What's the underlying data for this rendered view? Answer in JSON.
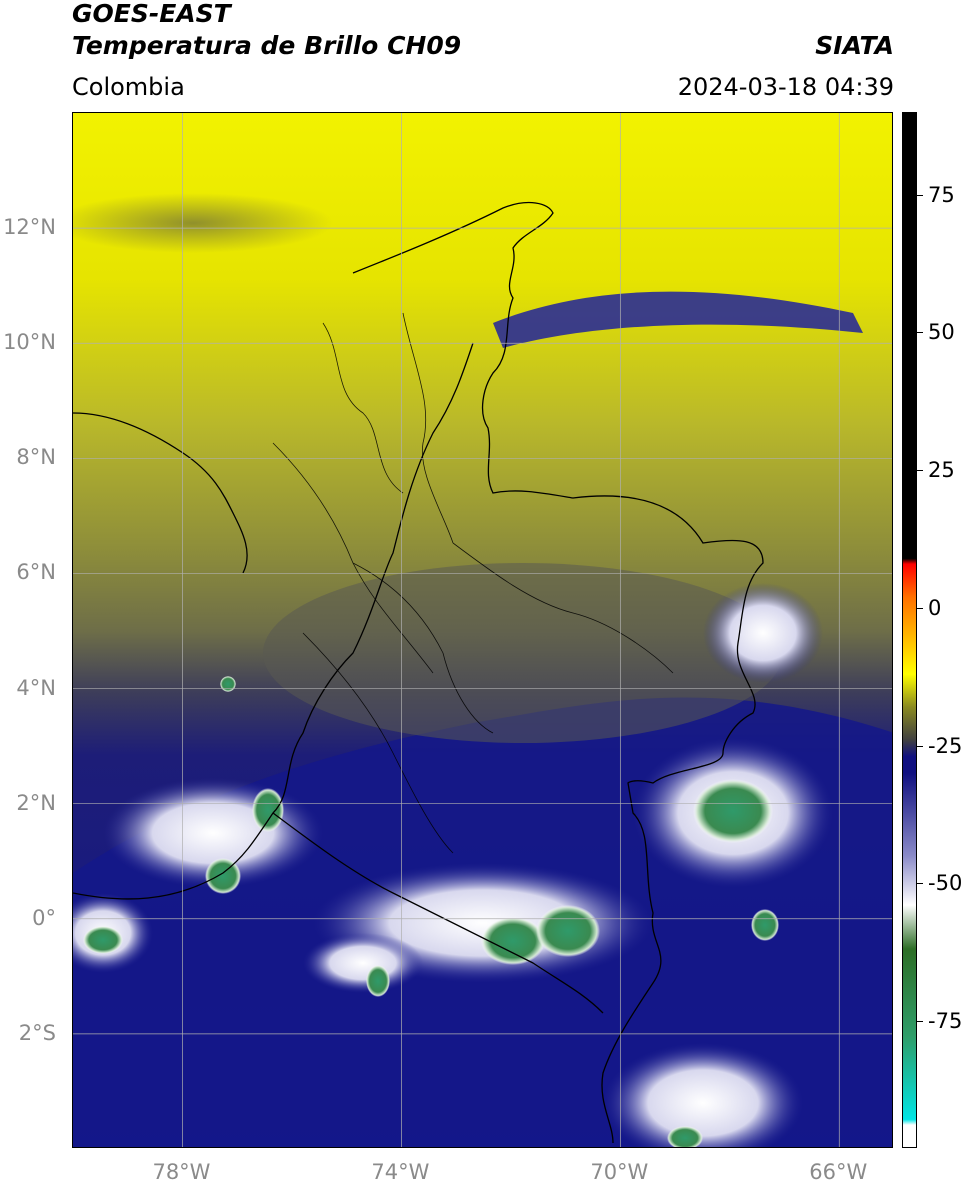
{
  "header": {
    "satellite": "GOES-EAST",
    "product": "Temperatura de Brillo CH09",
    "agency": "SIATA",
    "region": "Colombia",
    "datetime": "2024-03-18 04:39"
  },
  "map": {
    "lon_range": [
      -80,
      -65
    ],
    "lat_range": [
      -4.0,
      14.0
    ],
    "grid": true,
    "lat_ticks": [
      {
        "value": 12,
        "label": "12°N"
      },
      {
        "value": 10,
        "label": "10°N"
      },
      {
        "value": 8,
        "label": "8°N"
      },
      {
        "value": 6,
        "label": "6°N"
      },
      {
        "value": 4,
        "label": "4°N"
      },
      {
        "value": 2,
        "label": "2°N"
      },
      {
        "value": 0,
        "label": "0°"
      },
      {
        "value": -2,
        "label": "2°S"
      }
    ],
    "lon_ticks": [
      {
        "value": -78,
        "label": "78°W"
      },
      {
        "value": -74,
        "label": "74°W"
      },
      {
        "value": -70,
        "label": "70°W"
      },
      {
        "value": -66,
        "label": "66°W"
      }
    ]
  },
  "colorbar": {
    "range": [
      -98,
      90
    ],
    "ticks": [
      {
        "value": 75,
        "label": "75"
      },
      {
        "value": 50,
        "label": "50"
      },
      {
        "value": 25,
        "label": "25"
      },
      {
        "value": 0,
        "label": "0"
      },
      {
        "value": -25,
        "label": "-25"
      },
      {
        "value": -50,
        "label": "-50"
      },
      {
        "value": -75,
        "label": "-75"
      }
    ],
    "stops": [
      {
        "value": -98,
        "color": "#ffffff"
      },
      {
        "value": -94,
        "color": "#ffffff"
      },
      {
        "value": -93,
        "color": "#00e5e5"
      },
      {
        "value": -78,
        "color": "#2e9e6a"
      },
      {
        "value": -62,
        "color": "#2d6e26"
      },
      {
        "value": -54,
        "color": "#ffffff"
      },
      {
        "value": -45,
        "color": "#8a8ac8"
      },
      {
        "value": -30,
        "color": "#101080"
      },
      {
        "value": -27,
        "color": "#101080"
      },
      {
        "value": -24,
        "color": "#404040"
      },
      {
        "value": -18,
        "color": "#8a8a20"
      },
      {
        "value": -12,
        "color": "#ffff00"
      },
      {
        "value": -6,
        "color": "#ffc000"
      },
      {
        "value": 2,
        "color": "#ff7000"
      },
      {
        "value": 8,
        "color": "#ff0000"
      },
      {
        "value": 9,
        "color": "#000000"
      },
      {
        "value": 90,
        "color": "#000000"
      }
    ]
  }
}
